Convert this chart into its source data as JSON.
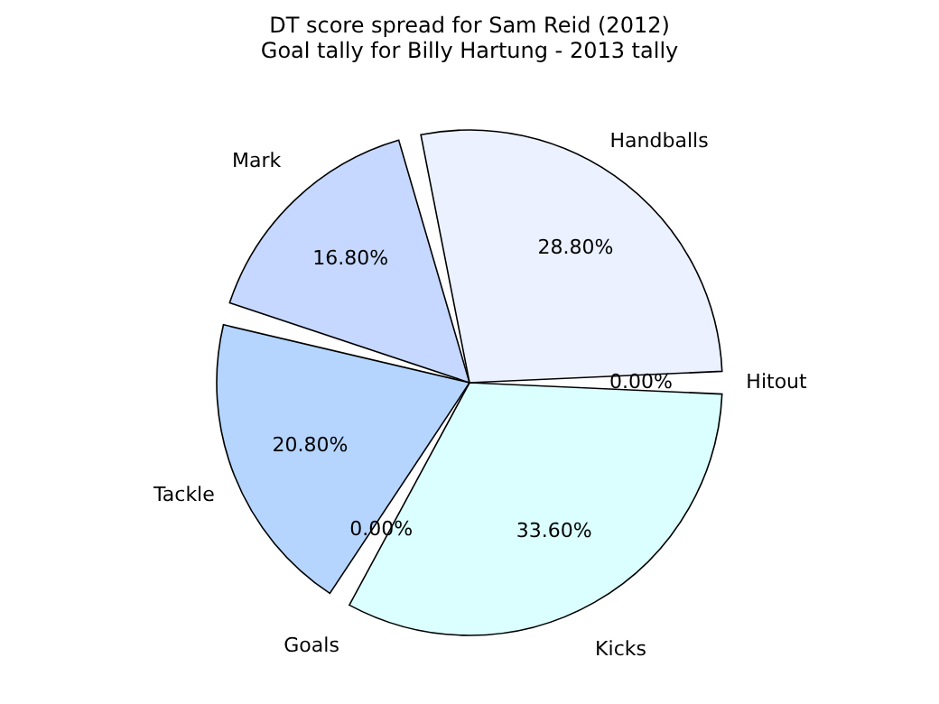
{
  "chart_data": {
    "type": "pie",
    "title": "DT score spread for Sam Reid (2012)",
    "subtitle": "Goal tally for Billy Hartung - 2013 tally",
    "categories": [
      "Hitout",
      "Kicks",
      "Goals",
      "Tackle",
      "Mark",
      "Handballs"
    ],
    "values": [
      0,
      33.6,
      0,
      20.8,
      16.8,
      28.8
    ],
    "value_labels": [
      "0.00%",
      "33.60%",
      "0.00%",
      "20.80%",
      "16.80%",
      "28.80%"
    ],
    "colors": [
      "#f0f0ff",
      "#dbffff",
      "#c8e0ff",
      "#b5d5ff",
      "#c6d8ff",
      "#ebf1ff"
    ],
    "legend": false
  }
}
